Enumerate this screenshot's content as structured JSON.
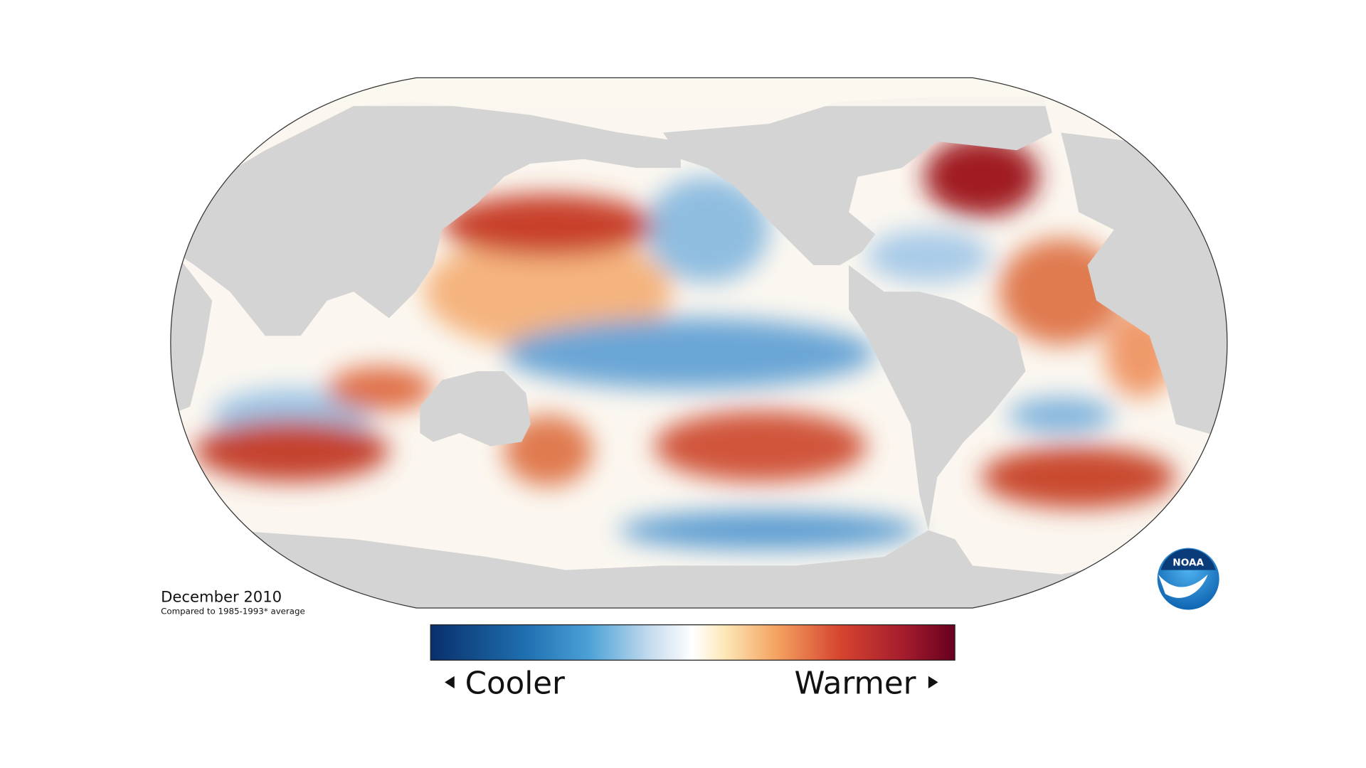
{
  "map": {
    "title": "December 2010",
    "subtitle": "Compared to 1985-1993* average"
  },
  "legend": {
    "low_label": "Cooler",
    "high_label": "Warmer"
  },
  "logo": {
    "text": "NOAA"
  }
}
